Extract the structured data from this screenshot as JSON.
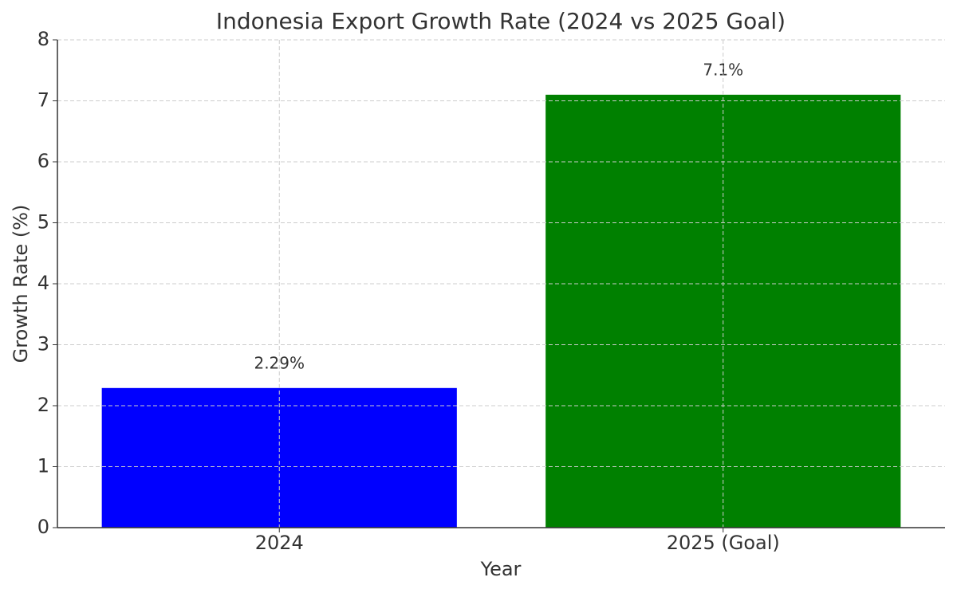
{
  "chart_data": {
    "type": "bar",
    "title": "Indonesia Export Growth Rate (2024 vs 2025 Goal)",
    "x_label": "Year",
    "y_label": "Growth Rate (%)",
    "categories": [
      "2024",
      "2025 (Goal)"
    ],
    "values": [
      2.29,
      7.1
    ],
    "value_labels": [
      "2.29%",
      "7.1%"
    ],
    "colors": [
      "#0000ff",
      "#008000"
    ],
    "ylim": [
      0,
      8
    ],
    "yticks": [
      0,
      1,
      2,
      3,
      4,
      5,
      6,
      7,
      8
    ],
    "grid": true
  }
}
